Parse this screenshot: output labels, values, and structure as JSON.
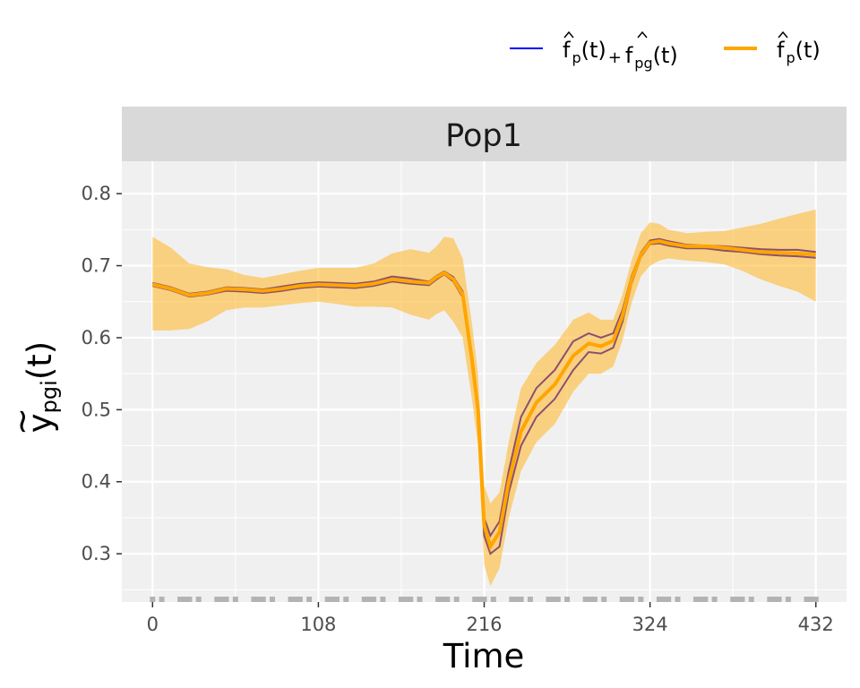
{
  "chart_data": {
    "type": "line",
    "panel": "Pop1",
    "xlabel": "Time",
    "ylabel": {
      "base": "y",
      "accent": "~",
      "sub": "pgi",
      "arg": "(t)"
    },
    "xlim": [
      -20,
      452
    ],
    "ylim": [
      0.233,
      0.845
    ],
    "xticks": [
      0,
      108,
      216,
      324,
      432
    ],
    "yticks": [
      0.3,
      0.4,
      0.5,
      0.6,
      0.7,
      0.8
    ],
    "ytick_labels": [
      "0.3",
      "0.4",
      "0.5",
      "0.6",
      "0.7",
      "0.8"
    ],
    "grid": true,
    "legend_position": "top-right",
    "legend": [
      {
        "label_parts": [
          "f",
          "p",
          "(t)",
          "+",
          "f",
          "pg",
          "(t)"
        ],
        "color": "#0000ff"
      },
      {
        "label_parts": [
          "f",
          "p",
          "(t)"
        ],
        "color": "#ffa500"
      }
    ],
    "colors": {
      "band": "#ffbb33",
      "mean": "#ffa500",
      "group": "#8b4f6e",
      "panel_bg": "#f0f0f0",
      "strip_bg": "#d9d9d9",
      "rug": "#b3b3b3"
    },
    "x": [
      0,
      12,
      24,
      36,
      48,
      60,
      72,
      84,
      96,
      108,
      120,
      132,
      144,
      156,
      168,
      180,
      185,
      190,
      196,
      202,
      208,
      212,
      216,
      220,
      226,
      232,
      240,
      250,
      262,
      274,
      284,
      292,
      300,
      306,
      312,
      318,
      324,
      330,
      336,
      348,
      360,
      372,
      384,
      396,
      408,
      420,
      432
    ],
    "series": [
      {
        "name": "mean",
        "values": [
          0.674,
          0.668,
          0.659,
          0.662,
          0.668,
          0.667,
          0.665,
          0.668,
          0.672,
          0.674,
          0.673,
          0.672,
          0.675,
          0.681,
          0.678,
          0.676,
          0.684,
          0.69,
          0.681,
          0.66,
          0.57,
          0.5,
          0.34,
          0.31,
          0.33,
          0.4,
          0.47,
          0.51,
          0.535,
          0.575,
          0.592,
          0.588,
          0.596,
          0.63,
          0.68,
          0.715,
          0.732,
          0.734,
          0.731,
          0.727,
          0.727,
          0.725,
          0.722,
          0.719,
          0.718,
          0.717,
          0.715
        ]
      },
      {
        "name": "upper-group",
        "values": [
          0.676,
          0.67,
          0.661,
          0.664,
          0.67,
          0.669,
          0.667,
          0.671,
          0.675,
          0.677,
          0.676,
          0.675,
          0.678,
          0.685,
          0.682,
          0.678,
          0.686,
          0.692,
          0.684,
          0.664,
          0.575,
          0.505,
          0.35,
          0.325,
          0.345,
          0.415,
          0.49,
          0.53,
          0.555,
          0.595,
          0.606,
          0.6,
          0.606,
          0.638,
          0.685,
          0.718,
          0.735,
          0.737,
          0.734,
          0.729,
          0.728,
          0.727,
          0.725,
          0.723,
          0.722,
          0.722,
          0.719
        ]
      },
      {
        "name": "lower-group",
        "values": [
          0.672,
          0.666,
          0.657,
          0.66,
          0.665,
          0.664,
          0.662,
          0.665,
          0.669,
          0.671,
          0.67,
          0.669,
          0.672,
          0.678,
          0.675,
          0.673,
          0.681,
          0.688,
          0.678,
          0.656,
          0.565,
          0.495,
          0.325,
          0.3,
          0.31,
          0.385,
          0.45,
          0.49,
          0.515,
          0.555,
          0.58,
          0.578,
          0.586,
          0.622,
          0.675,
          0.712,
          0.73,
          0.731,
          0.728,
          0.724,
          0.724,
          0.721,
          0.719,
          0.716,
          0.714,
          0.713,
          0.711
        ]
      },
      {
        "name": "band-upper",
        "values": [
          0.74,
          0.725,
          0.703,
          0.698,
          0.695,
          0.687,
          0.683,
          0.688,
          0.693,
          0.697,
          0.697,
          0.697,
          0.703,
          0.717,
          0.723,
          0.718,
          0.727,
          0.74,
          0.738,
          0.71,
          0.62,
          0.55,
          0.395,
          0.37,
          0.385,
          0.455,
          0.53,
          0.565,
          0.59,
          0.625,
          0.635,
          0.625,
          0.625,
          0.66,
          0.707,
          0.745,
          0.76,
          0.758,
          0.75,
          0.745,
          0.747,
          0.748,
          0.753,
          0.758,
          0.765,
          0.772,
          0.778
        ]
      },
      {
        "name": "band-lower",
        "values": [
          0.61,
          0.61,
          0.612,
          0.623,
          0.638,
          0.642,
          0.642,
          0.645,
          0.648,
          0.65,
          0.647,
          0.643,
          0.643,
          0.642,
          0.632,
          0.625,
          0.633,
          0.638,
          0.622,
          0.6,
          0.515,
          0.45,
          0.285,
          0.255,
          0.28,
          0.35,
          0.415,
          0.455,
          0.48,
          0.525,
          0.55,
          0.55,
          0.56,
          0.596,
          0.648,
          0.685,
          0.7,
          0.707,
          0.71,
          0.707,
          0.705,
          0.702,
          0.693,
          0.681,
          0.672,
          0.664,
          0.65
        ]
      }
    ],
    "rug_x": [
      0,
      6,
      18,
      21,
      24,
      30,
      42,
      45,
      48,
      54,
      66,
      69,
      72,
      78,
      90,
      93,
      96,
      102,
      114,
      117,
      120,
      126,
      138,
      141,
      144,
      150,
      162,
      165,
      168,
      174,
      186,
      189,
      192,
      198,
      210,
      213,
      216,
      222,
      234,
      237,
      240,
      246,
      258,
      261,
      264,
      270,
      282,
      285,
      288,
      294,
      306,
      309,
      312,
      318,
      330,
      333,
      336,
      342,
      354,
      357,
      360,
      366,
      378,
      381,
      384,
      390,
      402,
      405,
      408,
      414,
      426,
      429,
      432
    ]
  }
}
